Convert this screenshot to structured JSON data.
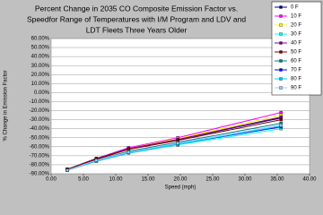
{
  "chart_data": {
    "type": "line",
    "title": [
      "Percent Change in 2035 CO Composite Emission Factor vs.",
      "Speedfor Range of Temperatures with I/M Program and LDV and",
      "LDT Fleets Three Years Older"
    ],
    "x_label": "Speed (mph)",
    "y_label": "% Change in Emission Factor",
    "x": [
      2.5,
      7,
      12,
      19.6,
      35.6
    ],
    "series": [
      {
        "name": "0 F",
        "color": "#000080",
        "values": [
          -85,
          -74,
          -62,
          -52,
          -28
        ]
      },
      {
        "name": "10 F",
        "color": "#ff00ff",
        "values": [
          -85,
          -73,
          -61,
          -50,
          -22
        ]
      },
      {
        "name": "20 F",
        "color": "#ffff00",
        "values": [
          -85,
          -73,
          -62,
          -51,
          -25
        ]
      },
      {
        "name": "30 F",
        "color": "#00ffff",
        "values": [
          -86,
          -76,
          -67,
          -58,
          -40
        ]
      },
      {
        "name": "40 F",
        "color": "#800080",
        "values": [
          -85,
          -73,
          -62,
          -52,
          -27
        ]
      },
      {
        "name": "50 F",
        "color": "#800000",
        "values": [
          -85,
          -74,
          -63,
          -53,
          -30
        ]
      },
      {
        "name": "60 F",
        "color": "#008080",
        "values": [
          -86,
          -75,
          -65,
          -55,
          -34
        ]
      },
      {
        "name": "70 F",
        "color": "#0000ff",
        "values": [
          -86,
          -76,
          -67,
          -57,
          -38
        ]
      },
      {
        "name": "80 F",
        "color": "#00ccff",
        "values": [
          -86,
          -76,
          -67,
          -57,
          -37
        ]
      },
      {
        "name": "90 F",
        "color": "#99ccff",
        "values": [
          -86,
          -75,
          -66,
          -56,
          -36
        ]
      }
    ],
    "xlim": [
      0,
      40
    ],
    "xticks": [
      {
        "value": 0,
        "label": "0.00"
      },
      {
        "value": 5,
        "label": "5.00"
      },
      {
        "value": 10,
        "label": "10.00"
      },
      {
        "value": 15,
        "label": "15.00"
      },
      {
        "value": 20,
        "label": "20.00"
      },
      {
        "value": 25,
        "label": "25.00"
      },
      {
        "value": 30,
        "label": "30.00"
      },
      {
        "value": 35,
        "label": "35.00"
      },
      {
        "value": 40,
        "label": "40.00"
      }
    ],
    "ylim": [
      -90,
      60
    ],
    "yticks": [
      {
        "value": -90,
        "label": "-90.00%"
      },
      {
        "value": -80,
        "label": "-80.00%"
      },
      {
        "value": -70,
        "label": "-70.00%"
      },
      {
        "value": -60,
        "label": "-60.00%"
      },
      {
        "value": -50,
        "label": "-50.00%"
      },
      {
        "value": -40,
        "label": "-40.00%"
      },
      {
        "value": -30,
        "label": "-30.00%"
      },
      {
        "value": -20,
        "label": "-20.00%"
      },
      {
        "value": -10,
        "label": "-10.00%"
      },
      {
        "value": 0,
        "label": "0.00%"
      },
      {
        "value": 10,
        "label": "10.00%"
      },
      {
        "value": 20,
        "label": "20.00%"
      },
      {
        "value": 30,
        "label": "30.00%"
      },
      {
        "value": 40,
        "label": "40.00%"
      },
      {
        "value": 50,
        "label": "50.00%"
      },
      {
        "value": 60,
        "label": "60.00%"
      }
    ],
    "grid": true
  }
}
